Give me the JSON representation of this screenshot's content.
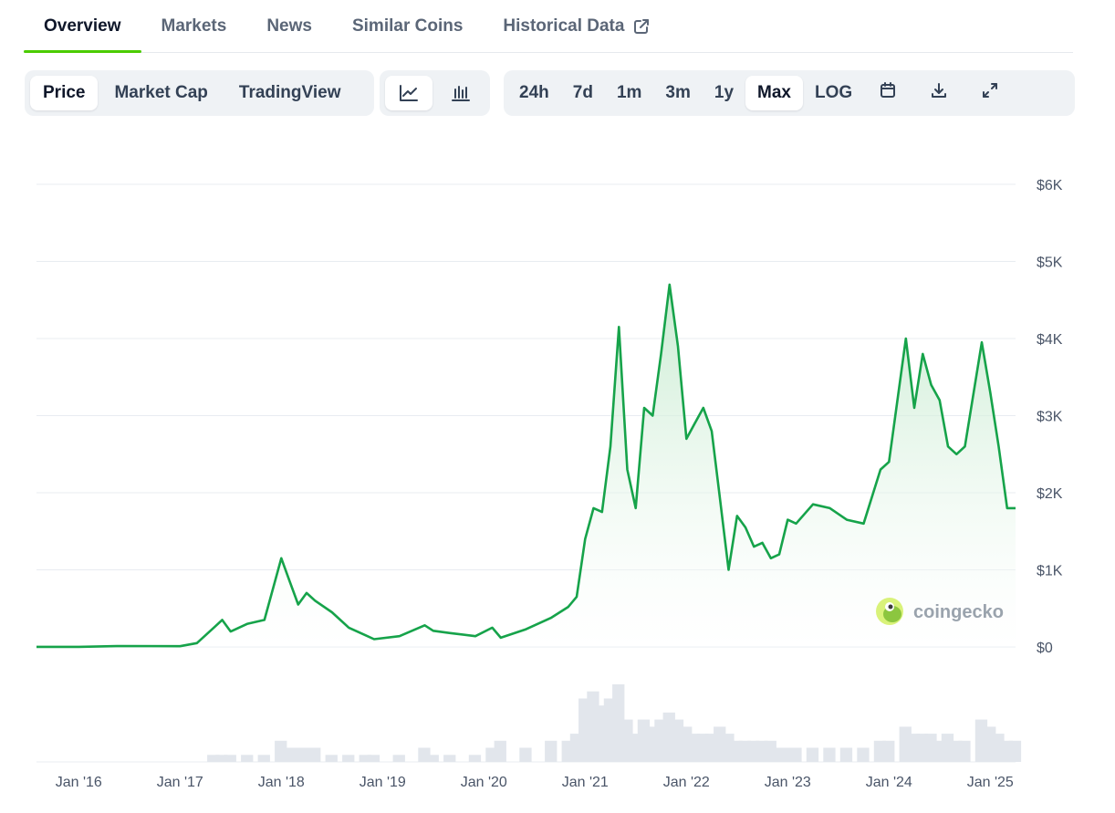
{
  "tabs": [
    {
      "label": "Overview"
    },
    {
      "label": "Markets"
    },
    {
      "label": "News"
    },
    {
      "label": "Similar Coins"
    },
    {
      "label": "Historical Data",
      "icon": "external-link-icon"
    }
  ],
  "toolbar": {
    "view_options": [
      "Price",
      "Market Cap",
      "TradingView"
    ],
    "chart_style_icons": [
      "line-chart-icon",
      "candlestick-chart-icon"
    ],
    "ranges": [
      "24h",
      "7d",
      "1m",
      "3m",
      "1y",
      "Max",
      "LOG"
    ],
    "selected_view": "Price",
    "selected_style": "line-chart-icon",
    "selected_range": "Max",
    "action_icons": [
      "calendar-icon",
      "download-icon",
      "fullscreen-icon"
    ]
  },
  "watermark": {
    "text": "coingecko",
    "icon": "coingecko-logo-icon"
  },
  "colors": {
    "accent": "#4bcc00",
    "line": "#16a34a",
    "fill_top": "#bfe8c9",
    "grid": "#e8ecf1",
    "volume": "#e2e6ec"
  },
  "chart_data": {
    "type": "area",
    "y_unit": "USD",
    "yticks": [
      "$0",
      "$1K",
      "$2K",
      "$3K",
      "$4K",
      "$5K",
      "$6K"
    ],
    "ylim": [
      0,
      6000
    ],
    "xticks": [
      "Jan '16",
      "Jan '17",
      "Jan '18",
      "Jan '19",
      "Jan '20",
      "Jan '21",
      "Jan '22",
      "Jan '23",
      "Jan '24",
      "Jan '25"
    ],
    "x_start": "2015-08",
    "x_end": "2025-04",
    "grid": true,
    "series": [
      {
        "x": [
          "2015-08",
          "2016-01",
          "2016-06",
          "2017-01",
          "2017-03",
          "2017-05",
          "2017-06",
          "2017-07",
          "2017-09",
          "2017-11",
          "2018-01",
          "2018-02",
          "2018-03",
          "2018-04",
          "2018-05",
          "2018-07",
          "2018-09",
          "2018-11",
          "2018-12",
          "2019-03",
          "2019-06",
          "2019-07",
          "2019-09",
          "2019-12",
          "2020-02",
          "2020-03",
          "2020-06",
          "2020-09",
          "2020-11",
          "2020-12",
          "2021-01",
          "2021-02",
          "2021-03",
          "2021-04",
          "2021-05",
          "2021-06",
          "2021-07",
          "2021-08",
          "2021-09",
          "2021-10",
          "2021-11",
          "2021-12",
          "2022-01",
          "2022-02",
          "2022-03",
          "2022-04",
          "2022-05",
          "2022-06",
          "2022-07",
          "2022-08",
          "2022-09",
          "2022-10",
          "2022-11",
          "2022-12",
          "2023-01",
          "2023-02",
          "2023-04",
          "2023-06",
          "2023-08",
          "2023-10",
          "2023-12",
          "2024-01",
          "2024-03",
          "2024-04",
          "2024-05",
          "2024-06",
          "2024-07",
          "2024-08",
          "2024-09",
          "2024-10",
          "2024-12",
          "2025-01",
          "2025-02",
          "2025-03",
          "2025-04"
        ],
        "y": [
          1,
          1,
          12,
          10,
          50,
          250,
          350,
          200,
          300,
          350,
          1150,
          850,
          550,
          700,
          600,
          450,
          250,
          150,
          100,
          140,
          280,
          210,
          180,
          140,
          250,
          120,
          230,
          380,
          520,
          650,
          1400,
          1800,
          1750,
          2600,
          4150,
          2300,
          1800,
          3100,
          3000,
          3800,
          4700,
          3900,
          2700,
          2900,
          3100,
          2800,
          1900,
          1000,
          1700,
          1550,
          1300,
          1350,
          1150,
          1200,
          1650,
          1600,
          1850,
          1800,
          1650,
          1600,
          2300,
          2400,
          4000,
          3100,
          3800,
          3400,
          3200,
          2600,
          2500,
          2600,
          3950,
          3300,
          2600,
          1800,
          1800
        ]
      }
    ],
    "volume": [
      0,
      0,
      0,
      0,
      0,
      1,
      1,
      1,
      1,
      1,
      3,
      2,
      2,
      2,
      2,
      1,
      1,
      1,
      1,
      1,
      2,
      1,
      1,
      1,
      2,
      3,
      2,
      3,
      3,
      4,
      9,
      10,
      8,
      9,
      11,
      6,
      4,
      6,
      5,
      6,
      7,
      6,
      5,
      4,
      4,
      4,
      5,
      4,
      3,
      3,
      3,
      3,
      3,
      2,
      2,
      2,
      2,
      2,
      2,
      2,
      3,
      3,
      5,
      4,
      4,
      4,
      3,
      4,
      3,
      3,
      6,
      5,
      4,
      3,
      3
    ]
  }
}
